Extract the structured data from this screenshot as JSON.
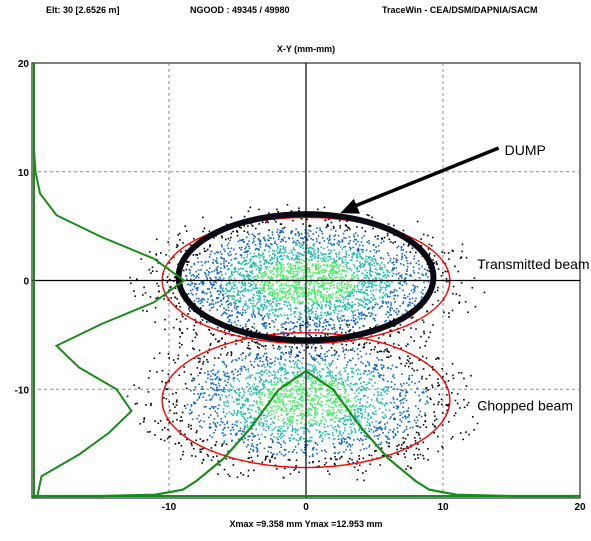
{
  "header": {
    "elt": "Elt: 30 [2.6526 m]",
    "ngood": "NGOOD : 49345 / 49980",
    "tracewin": "TraceWin - CEA/DSM/DAPNIA/SACM"
  },
  "chart_data": {
    "type": "scatter",
    "title": "X-Y (mm-mm)",
    "xlim": [
      -20,
      20
    ],
    "ylim": [
      -20,
      20
    ],
    "x_ticks": [
      -10,
      0,
      10,
      20
    ],
    "y_ticks": [
      20,
      10,
      0,
      -10
    ],
    "x_tick_labels": [
      "-10",
      "0",
      "10",
      "20"
    ],
    "y_tick_labels": [
      "20",
      "10",
      "0",
      "-10"
    ],
    "grid": true,
    "footer": "Xmax =9.358 mm  Ymax =12.953 mm",
    "beams": [
      {
        "label": "Transmitted beam",
        "center": [
          0,
          0
        ],
        "radius": [
          10.5,
          5.8
        ],
        "color": "#ff0000"
      },
      {
        "label": "Chopped beam",
        "center": [
          0,
          -11
        ],
        "radius": [
          10.5,
          6.2
        ],
        "color": "#ff0000"
      }
    ],
    "dump_ring": {
      "center": [
        0,
        0.3
      ],
      "radius": [
        9.3,
        5.8
      ],
      "color": "#0a0a14"
    },
    "annotations": [
      {
        "text": "DUMP",
        "x": 14.5,
        "y": 12,
        "arrow_to": [
          2.5,
          6.2
        ]
      },
      {
        "text": "Transmitted beam",
        "x": 12.5,
        "y": 1.5
      },
      {
        "text": "Chopped beam",
        "x": 12.5,
        "y": -11.5
      }
    ],
    "y_profile": {
      "color": "#1a8a1a",
      "y": [
        -20,
        -18,
        -16,
        -14,
        -12,
        -10,
        -8,
        -6,
        -4,
        -2,
        0,
        2,
        4,
        6,
        8,
        10,
        12,
        14,
        16,
        18,
        20
      ],
      "weight": [
        0.02,
        0.05,
        0.3,
        0.5,
        0.65,
        0.55,
        0.3,
        0.15,
        0.45,
        0.8,
        1.0,
        0.8,
        0.45,
        0.15,
        0.04,
        0.01,
        0.0,
        0.0,
        0.0,
        0.0,
        0.0
      ]
    },
    "x_profile": {
      "color": "#1a8a1a",
      "x": [
        -20,
        -15,
        -11,
        -9,
        -8,
        -6,
        -4,
        -2,
        0,
        2,
        4,
        6,
        8,
        9,
        11,
        15,
        20
      ],
      "weight": [
        0,
        0,
        0.01,
        0.05,
        0.12,
        0.3,
        0.55,
        0.85,
        1.0,
        0.85,
        0.55,
        0.3,
        0.12,
        0.05,
        0.01,
        0,
        0
      ]
    }
  }
}
